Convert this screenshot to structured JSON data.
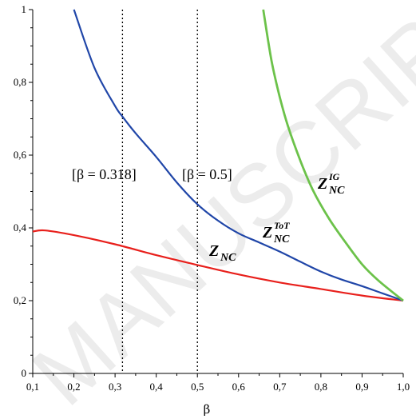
{
  "watermark": "MANUSCRIPT",
  "chart_data": {
    "type": "line",
    "xlabel": "β",
    "ylabel": "",
    "xlim": [
      0.1,
      1.0
    ],
    "ylim": [
      0,
      1
    ],
    "x_ticks": [
      0.1,
      0.2,
      0.3,
      0.4,
      0.5,
      0.6,
      0.7,
      0.8,
      0.9,
      1.0
    ],
    "x_tick_labels": [
      "0,1",
      "0,2",
      "0,3",
      "0,4",
      "0,5",
      "0,6",
      "0,7",
      "0,8",
      "0,9",
      "1,0"
    ],
    "y_ticks": [
      0,
      0.2,
      0.4,
      0.6,
      0.8,
      1
    ],
    "y_tick_labels": [
      "0",
      "0,2",
      "0,4",
      "0,6",
      "0,8",
      "1"
    ],
    "grid": false,
    "series": [
      {
        "name": "Z_NC",
        "color": "#e8201c",
        "x": [
          0.1,
          0.13,
          0.2,
          0.3,
          0.4,
          0.5,
          0.6,
          0.7,
          0.8,
          0.9,
          1.0
        ],
        "y": [
          0.39,
          0.393,
          0.38,
          0.355,
          0.325,
          0.298,
          0.272,
          0.25,
          0.232,
          0.214,
          0.2
        ]
      },
      {
        "name": "Z_NC^ToT",
        "color": "#2046a8",
        "x": [
          0.2,
          0.25,
          0.3,
          0.318,
          0.35,
          0.4,
          0.45,
          0.5,
          0.55,
          0.6,
          0.65,
          0.7,
          0.75,
          0.8,
          0.85,
          0.9,
          0.95,
          1.0
        ],
        "y": [
          1.0,
          0.84,
          0.735,
          0.706,
          0.66,
          0.595,
          0.525,
          0.465,
          0.42,
          0.385,
          0.36,
          0.335,
          0.307,
          0.28,
          0.258,
          0.24,
          0.22,
          0.2
        ]
      },
      {
        "name": "Z_NC^IG",
        "color": "#6cc24a",
        "x": [
          0.66,
          0.68,
          0.7,
          0.72,
          0.75,
          0.78,
          0.82,
          0.86,
          0.9,
          0.94,
          1.0
        ],
        "y": [
          1.0,
          0.86,
          0.76,
          0.68,
          0.585,
          0.505,
          0.425,
          0.36,
          0.3,
          0.255,
          0.2
        ]
      }
    ],
    "vlines": [
      {
        "x": 0.318,
        "label": "[β = 0.318]"
      },
      {
        "x": 0.5,
        "label": "[β = 0.5]"
      }
    ],
    "curve_labels": [
      {
        "base": "Z",
        "sub": "NC",
        "sup": "IG"
      },
      {
        "base": "Z",
        "sub": "NC",
        "sup": "ToT"
      },
      {
        "base": "Z",
        "sub": "NC",
        "sup": ""
      }
    ]
  }
}
